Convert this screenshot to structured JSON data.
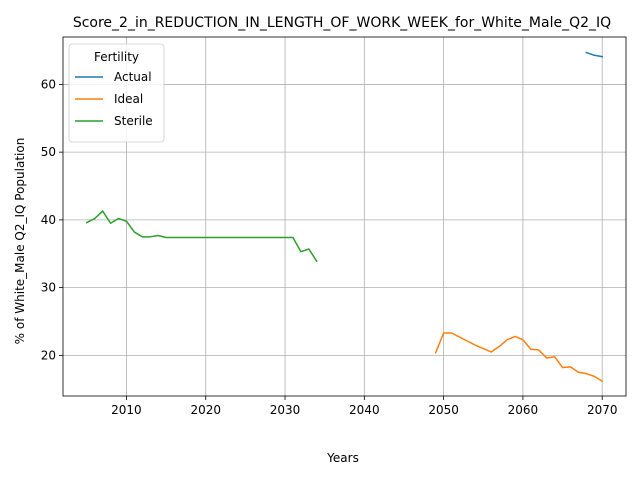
{
  "chart_data": {
    "type": "line",
    "title": "Score_2_in_REDUCTION_IN_LENGTH_OF_WORK_WEEK_for_White_Male_Q2_IQ",
    "xlabel": "Years",
    "ylabel": "% of White_Male Q2_IQ Population",
    "xlim": [
      2002,
      2073
    ],
    "ylim": [
      14,
      67
    ],
    "xticks": [
      2010,
      2020,
      2030,
      2040,
      2050,
      2060,
      2070
    ],
    "yticks": [
      20,
      30,
      40,
      50,
      60
    ],
    "grid": true,
    "legend": {
      "title": "Fertility",
      "position": "top-left"
    },
    "series": [
      {
        "name": "Actual",
        "color": "#1f77b4",
        "x": [
          2068,
          2069,
          2070
        ],
        "y": [
          64.7,
          64.3,
          64.1
        ]
      },
      {
        "name": "Ideal",
        "color": "#ff7f0e",
        "x": [
          2049,
          2050,
          2051,
          2052,
          2053,
          2054,
          2055,
          2056,
          2057,
          2058,
          2059,
          2060,
          2061,
          2062,
          2063,
          2064,
          2065,
          2066,
          2067,
          2068,
          2069,
          2070
        ],
        "y": [
          20.4,
          23.3,
          23.3,
          22.7,
          22.1,
          21.5,
          21.0,
          20.5,
          21.3,
          22.3,
          22.8,
          22.3,
          20.9,
          20.8,
          19.6,
          19.8,
          18.2,
          18.3,
          17.5,
          17.3,
          16.9,
          16.2
        ]
      },
      {
        "name": "Sterile",
        "color": "#2ca02c",
        "x": [
          2005,
          2006,
          2007,
          2008,
          2009,
          2010,
          2011,
          2012,
          2013,
          2014,
          2015,
          2016,
          2017,
          2018,
          2019,
          2020,
          2021,
          2022,
          2023,
          2024,
          2025,
          2026,
          2027,
          2028,
          2029,
          2030,
          2031,
          2032,
          2033,
          2034
        ],
        "y": [
          39.6,
          40.2,
          41.3,
          39.5,
          40.2,
          39.8,
          38.2,
          37.5,
          37.5,
          37.7,
          37.4,
          37.4,
          37.4,
          37.4,
          37.4,
          37.4,
          37.4,
          37.4,
          37.4,
          37.4,
          37.4,
          37.4,
          37.4,
          37.4,
          37.4,
          37.4,
          37.4,
          35.3,
          35.7,
          33.9
        ]
      }
    ]
  }
}
